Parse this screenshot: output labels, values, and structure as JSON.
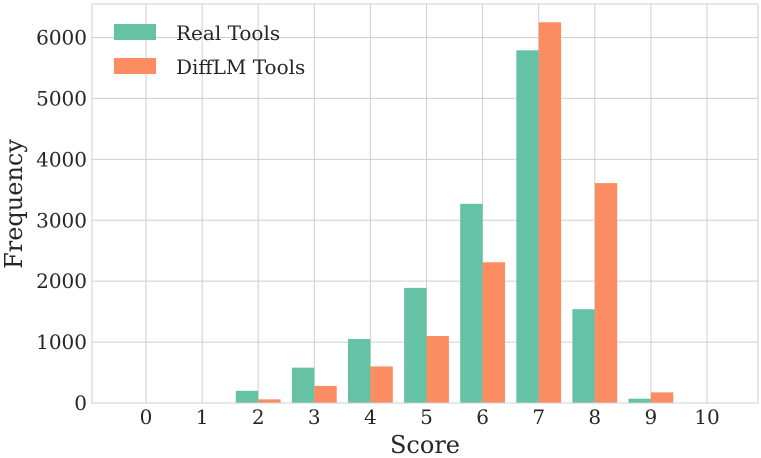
{
  "chart_data": {
    "type": "bar",
    "title": "",
    "xlabel": "Score",
    "ylabel": "Frequency",
    "categories": [
      "0",
      "1",
      "2",
      "3",
      "4",
      "5",
      "6",
      "7",
      "8",
      "9",
      "10"
    ],
    "y_ticks": [
      "0",
      "1000",
      "2000",
      "3000",
      "4000",
      "5000",
      "6000"
    ],
    "ylim": [
      0,
      6550
    ],
    "grid": true,
    "legend_position": "top-left",
    "series": [
      {
        "name": "Real Tools",
        "color": "#66c2a5",
        "values": [
          0,
          0,
          200,
          580,
          1050,
          1890,
          3270,
          5790,
          1540,
          70,
          0
        ]
      },
      {
        "name": "DiffLM Tools",
        "color": "#fc8d62",
        "values": [
          0,
          0,
          60,
          280,
          600,
          1100,
          2310,
          6250,
          3610,
          175,
          0
        ]
      }
    ]
  }
}
